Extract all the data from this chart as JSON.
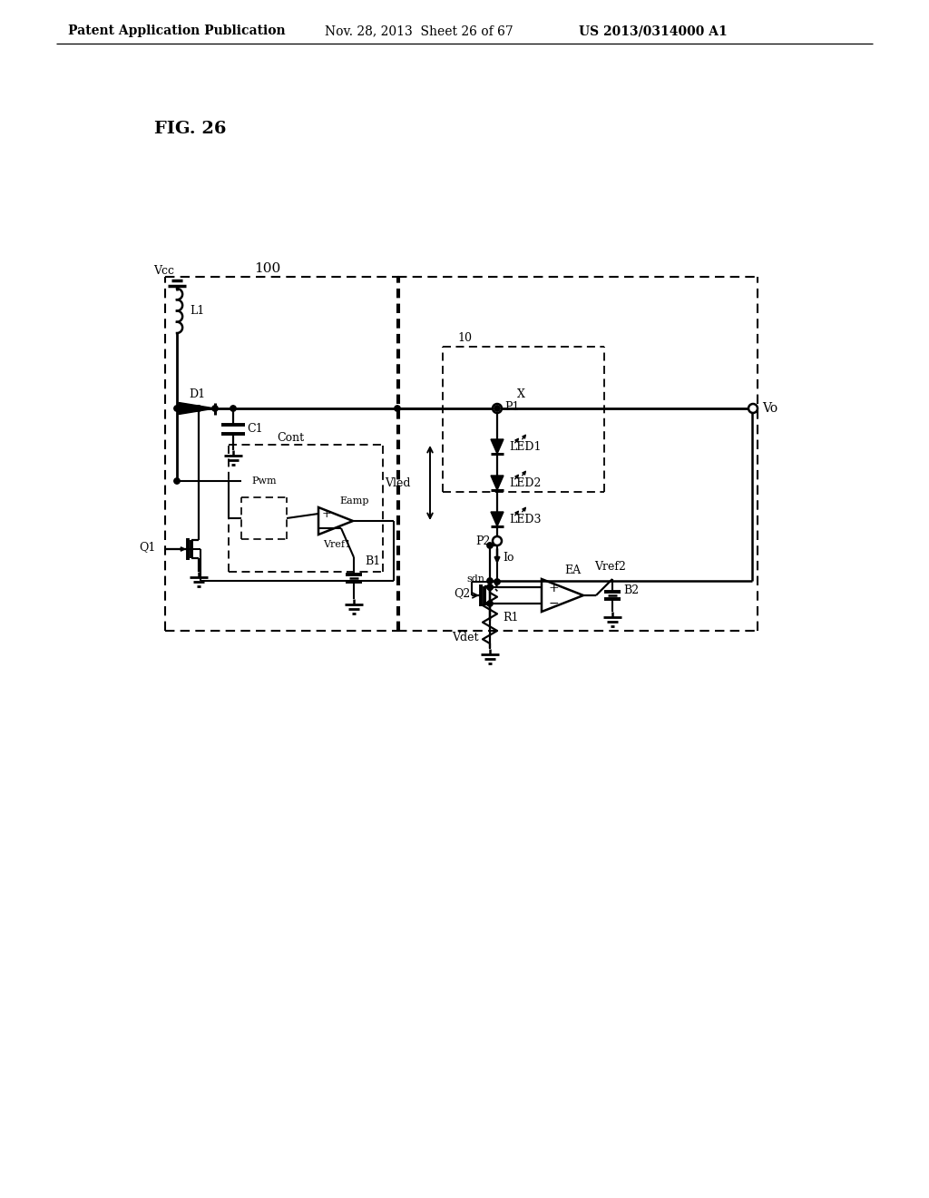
{
  "header_left": "Patent Application Publication",
  "header_mid": "Nov. 28, 2013  Sheet 26 of 67",
  "header_right": "US 2013/0314000 A1",
  "fig_label": "FIG. 26",
  "bg": "#ffffff"
}
